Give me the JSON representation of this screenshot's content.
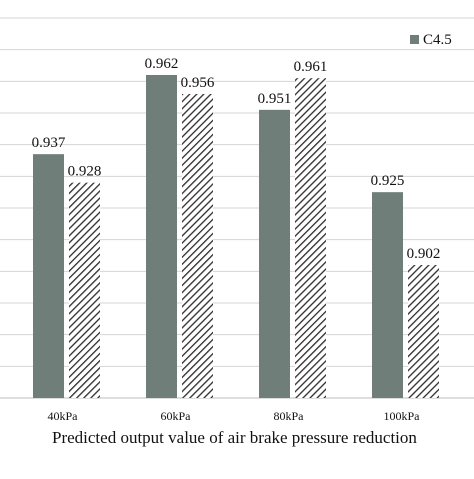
{
  "chart_data": {
    "type": "bar",
    "title": "",
    "xlabel": "Predicted output value of air brake pressure reduction",
    "ylabel": "",
    "categories": [
      "40kPa",
      "60kPa",
      "80kPa",
      "100kPa"
    ],
    "series": [
      {
        "name": "C4.5",
        "values": [
          0.937,
          0.962,
          0.951,
          0.925
        ],
        "color": "#6f7e79",
        "pattern": "solid"
      },
      {
        "values": [
          0.928,
          0.956,
          0.961,
          0.902
        ],
        "color": "#2b2b2b",
        "pattern": "diagonal-hatch"
      }
    ],
    "ylim": [
      0.86,
      0.98
    ],
    "grid": true,
    "legend": "top-right"
  }
}
